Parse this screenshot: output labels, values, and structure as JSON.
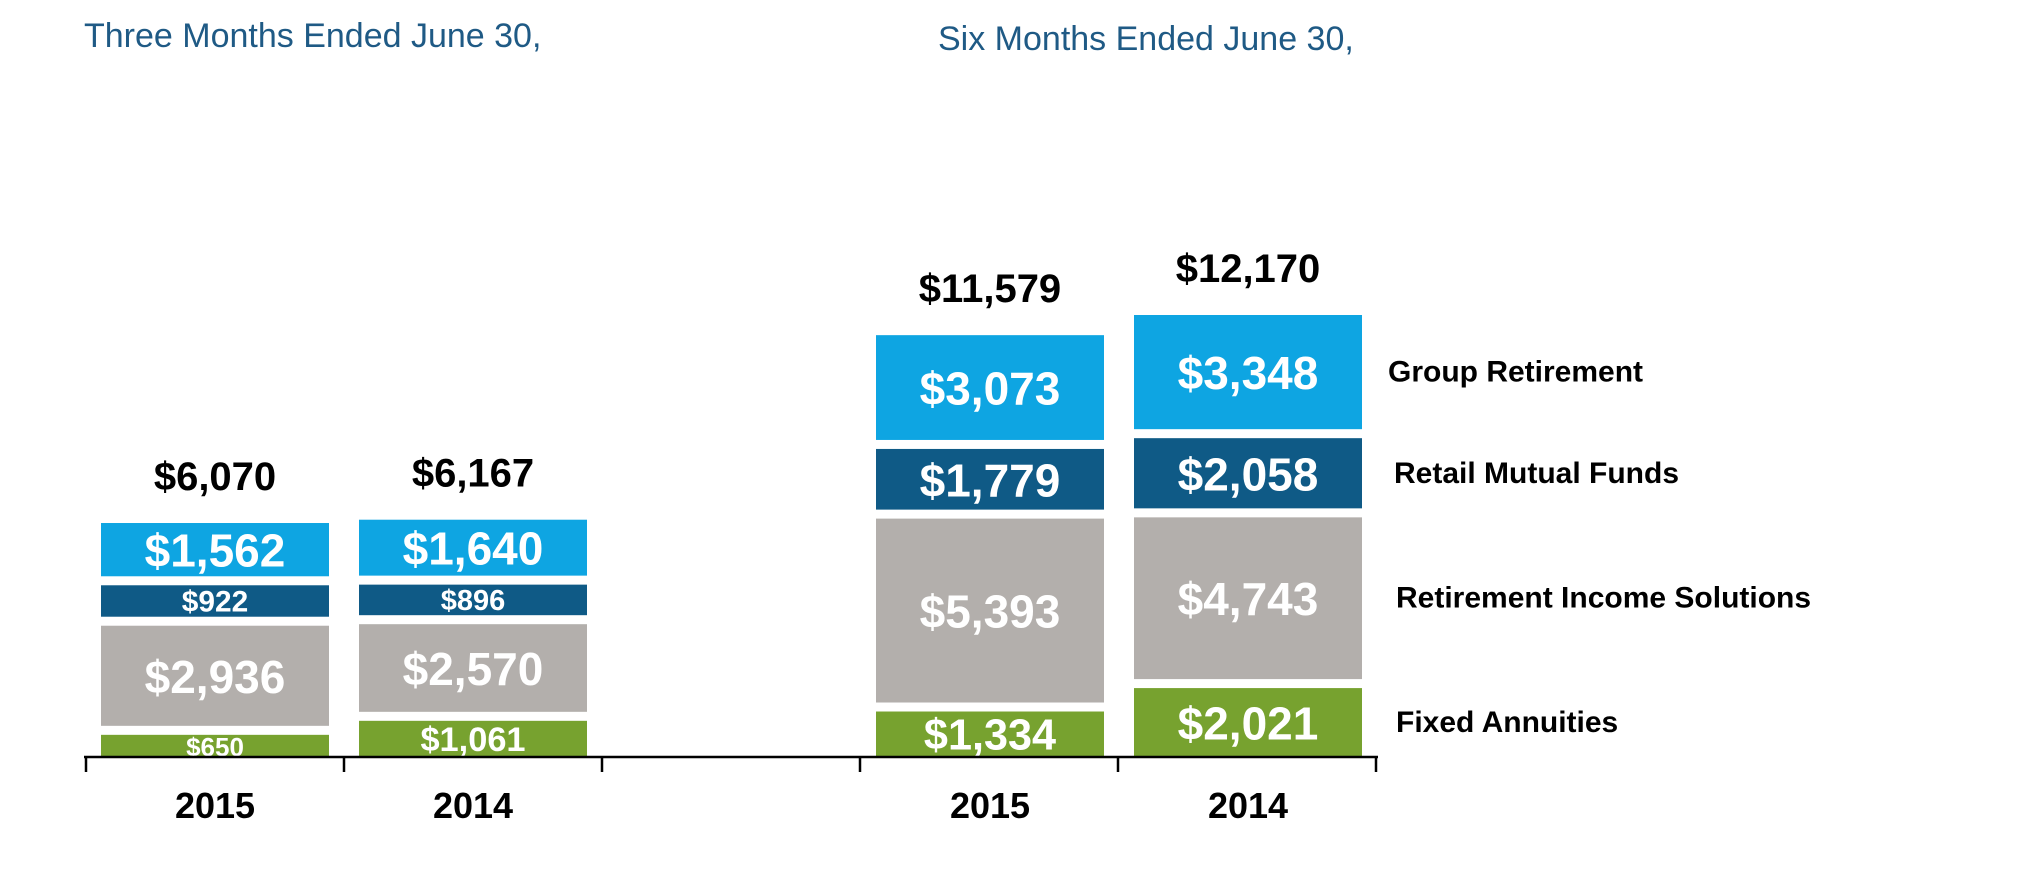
{
  "chart_data": {
    "type": "bar",
    "stacked": true,
    "units": "$ millions",
    "panels": [
      {
        "title": "Three Months Ended June 30,",
        "categories": [
          "2015",
          "2014"
        ],
        "totals": [
          6070,
          6167
        ],
        "total_labels": [
          "$6,070",
          "$6,167"
        ],
        "series": [
          {
            "name": "Fixed Annuities",
            "values": [
              650,
              1061
            ],
            "labels": [
              "$650",
              "$1,061"
            ]
          },
          {
            "name": "Retirement Income Solutions",
            "values": [
              2936,
              2570
            ],
            "labels": [
              "$2,936",
              "$2,570"
            ]
          },
          {
            "name": "Retail Mutual Funds",
            "values": [
              922,
              896
            ],
            "labels": [
              "$922",
              "$896"
            ]
          },
          {
            "name": "Group Retirement",
            "values": [
              1562,
              1640
            ],
            "labels": [
              "$1,562",
              "$1,640"
            ]
          }
        ]
      },
      {
        "title": "Six Months Ended June 30,",
        "categories": [
          "2015",
          "2014"
        ],
        "totals": [
          11579,
          12170
        ],
        "total_labels": [
          "$11,579",
          "$12,170"
        ],
        "series": [
          {
            "name": "Fixed Annuities",
            "values": [
              1334,
              2021
            ],
            "labels": [
              "$1,334",
              "$2,021"
            ]
          },
          {
            "name": "Retirement Income Solutions",
            "values": [
              5393,
              4743
            ],
            "labels": [
              "$5,393",
              "$4,743"
            ]
          },
          {
            "name": "Retail Mutual Funds",
            "values": [
              1779,
              2058
            ],
            "labels": [
              "$1,779",
              "$2,058"
            ]
          },
          {
            "name": "Group Retirement",
            "values": [
              3073,
              3348
            ],
            "labels": [
              "$3,073",
              "$3,348"
            ]
          }
        ]
      }
    ],
    "legend": [
      "Group Retirement",
      "Retail Mutual Funds",
      "Retirement Income Solutions",
      "Fixed Annuities"
    ],
    "colors": {
      "Group Retirement": "#0ea5e2",
      "Retail Mutual Funds": "#0f5a86",
      "Retirement Income Solutions": "#b3afac",
      "Fixed Annuities": "#77a22f"
    }
  }
}
